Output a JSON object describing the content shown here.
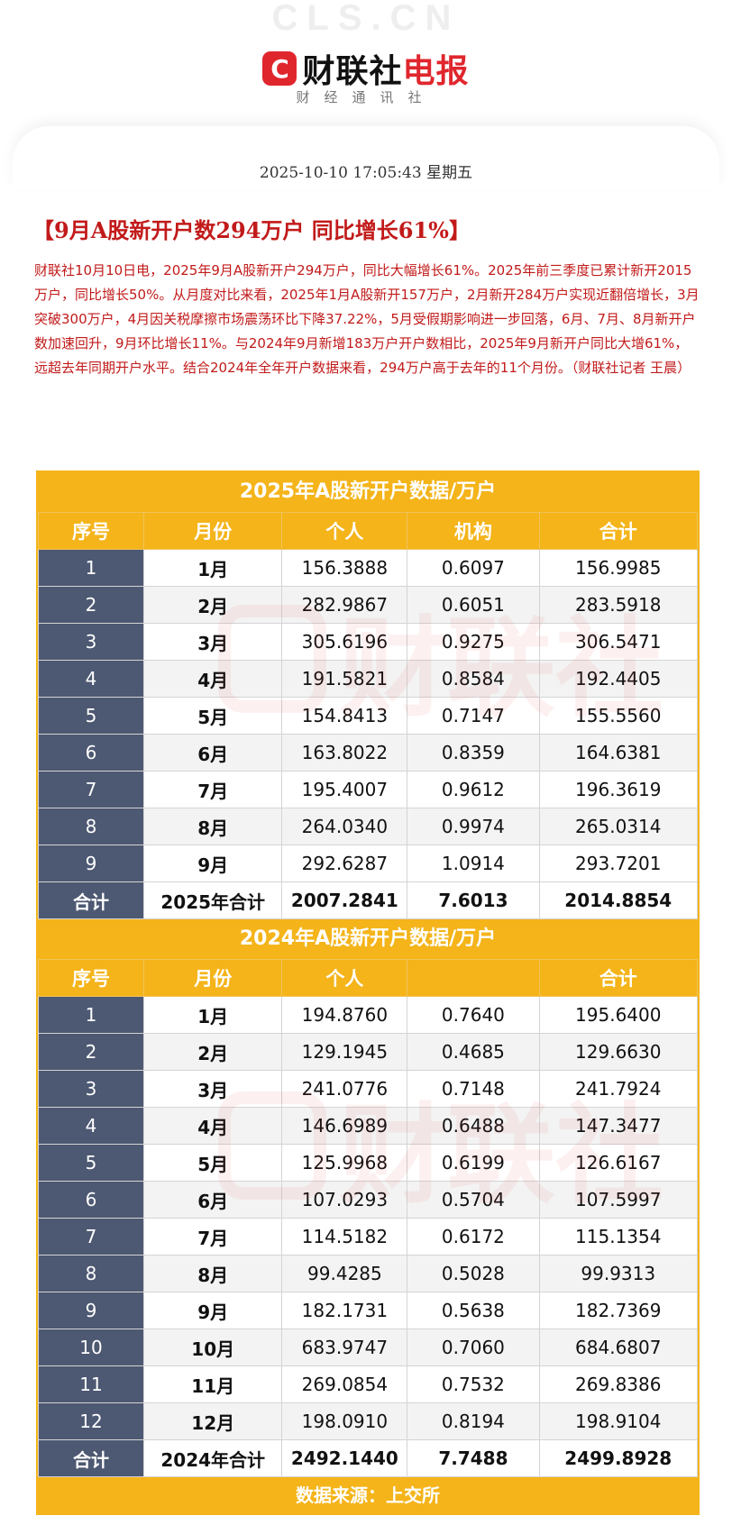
{
  "watermark": "CLS.CN",
  "brand": {
    "logo_letter": "C",
    "name_black": "财联社",
    "name_red": "电报",
    "tagline": "财经通讯社"
  },
  "article": {
    "datetime": "2025-10-10 17:05:43 星期五",
    "headline": "【9月A股新开户数294万户 同比增长61%】",
    "body": "财联社10月10日电，2025年9月A股新开户294万户，同比大幅增长61%。2025年前三季度已累计新开2015万户，同比增长50%。从月度对比来看，2025年1月A股新开157万户，2月新开284万户实现近翻倍增长，3月突破300万户，4月因关税摩擦市场震荡环比下降37.22%，5月受假期影响进一步回落，6月、7月、8月新开户数加速回升，9月环比增长11%。与2024年9月新增183万户开户数相比，2025年9月新开户同比大增61%，远超去年同期开户水平。结合2024年全年开户数据来看，294万户高于去年的11个月份。（财联社记者 王晨）"
  },
  "table_watermark": "财联社",
  "tables": [
    {
      "title": "2025年A股新开户数据/万户",
      "headers": [
        "序号",
        "月份",
        "个人",
        "机构",
        "合计"
      ],
      "rows": [
        [
          "1",
          "1月",
          "156.3888",
          "0.6097",
          "156.9985"
        ],
        [
          "2",
          "2月",
          "282.9867",
          "0.6051",
          "283.5918"
        ],
        [
          "3",
          "3月",
          "305.6196",
          "0.9275",
          "306.5471"
        ],
        [
          "4",
          "4月",
          "191.5821",
          "0.8584",
          "192.4405"
        ],
        [
          "5",
          "5月",
          "154.8413",
          "0.7147",
          "155.5560"
        ],
        [
          "6",
          "6月",
          "163.8022",
          "0.8359",
          "164.6381"
        ],
        [
          "7",
          "7月",
          "195.4007",
          "0.9612",
          "196.3619"
        ],
        [
          "8",
          "8月",
          "264.0340",
          "0.9974",
          "265.0314"
        ],
        [
          "9",
          "9月",
          "292.6287",
          "1.0914",
          "293.7201"
        ]
      ],
      "total": [
        "合计",
        "2025年合计",
        "2007.2841",
        "7.6013",
        "2014.8854"
      ]
    },
    {
      "title": "2024年A股新开户数据/万户",
      "headers": [
        "序号",
        "月份",
        "个人",
        "",
        "合计"
      ],
      "rows": [
        [
          "1",
          "1月",
          "194.8760",
          "0.7640",
          "195.6400"
        ],
        [
          "2",
          "2月",
          "129.1945",
          "0.4685",
          "129.6630"
        ],
        [
          "3",
          "3月",
          "241.0776",
          "0.7148",
          "241.7924"
        ],
        [
          "4",
          "4月",
          "146.6989",
          "0.6488",
          "147.3477"
        ],
        [
          "5",
          "5月",
          "125.9968",
          "0.6199",
          "126.6167"
        ],
        [
          "6",
          "6月",
          "107.0293",
          "0.5704",
          "107.5997"
        ],
        [
          "7",
          "7月",
          "114.5182",
          "0.6172",
          "115.1354"
        ],
        [
          "8",
          "8月",
          "99.4285",
          "0.5028",
          "99.9313"
        ],
        [
          "9",
          "9月",
          "182.1731",
          "0.5638",
          "182.7369"
        ],
        [
          "10",
          "10月",
          "683.9747",
          "0.7060",
          "684.6807"
        ],
        [
          "11",
          "11月",
          "269.0854",
          "0.7532",
          "269.8386"
        ],
        [
          "12",
          "12月",
          "198.0910",
          "0.8194",
          "198.9104"
        ]
      ],
      "total": [
        "合计",
        "2024年合计",
        "2492.1440",
        "7.7488",
        "2499.8928"
      ]
    }
  ],
  "source": "数据来源：上交所"
}
